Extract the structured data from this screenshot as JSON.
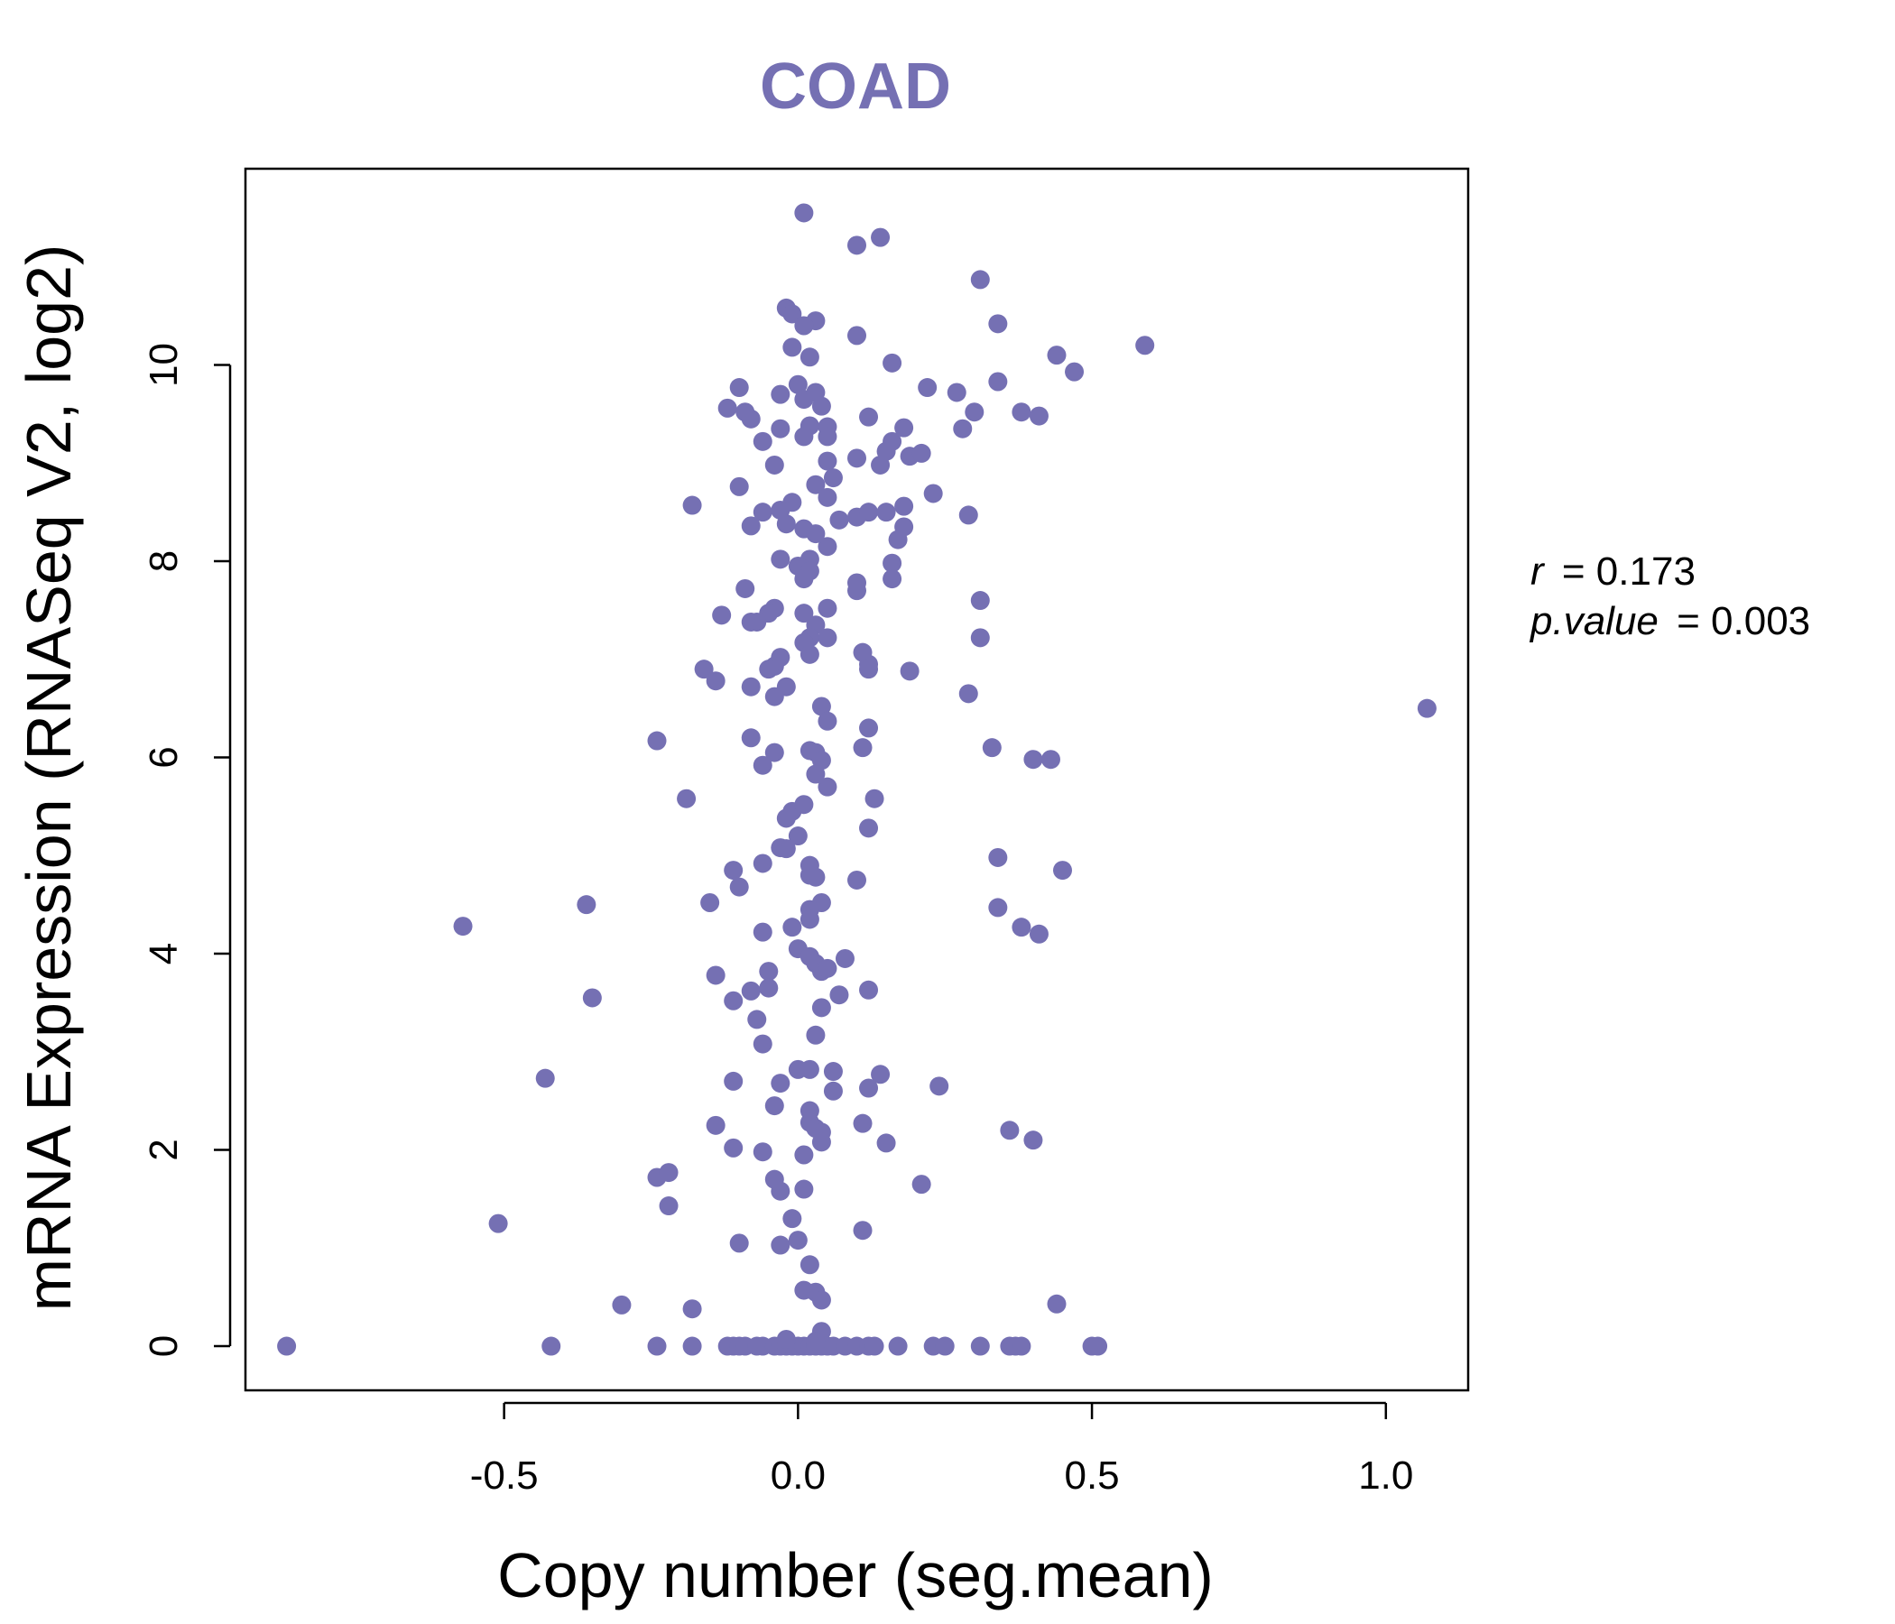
{
  "chart_data": {
    "type": "scatter",
    "title": "COAD",
    "xlabel": "Copy number (seg.mean)",
    "ylabel": "mRNA Expression (RNASeq V2, log2)",
    "xlim": [
      -0.94,
      1.14
    ],
    "ylim": [
      -0.45,
      12.0
    ],
    "x_ticks": [
      -0.5,
      0.0,
      0.5,
      1.0
    ],
    "x_tick_labels": [
      "-0.5",
      "0.0",
      "0.5",
      "1.0"
    ],
    "y_ticks": [
      0,
      2,
      4,
      6,
      8,
      10
    ],
    "y_tick_labels": [
      "0",
      "2",
      "4",
      "6",
      "8",
      "10"
    ],
    "grid": false,
    "point_color": "#7570b3",
    "annotation": {
      "r_symbol": "r",
      "r_value": "= 0.173",
      "p_symbol": "p.value",
      "p_value": "= 0.003"
    },
    "points": [
      [
        0.01,
        11.55
      ],
      [
        0.1,
        11.22
      ],
      [
        0.14,
        11.3
      ],
      [
        0.31,
        10.87
      ],
      [
        -0.02,
        10.58
      ],
      [
        -0.01,
        10.52
      ],
      [
        0.03,
        10.45
      ],
      [
        0.01,
        10.4
      ],
      [
        0.34,
        10.42
      ],
      [
        0.1,
        10.3
      ],
      [
        -0.01,
        10.18
      ],
      [
        0.02,
        10.08
      ],
      [
        0.44,
        10.1
      ],
      [
        0.59,
        10.2
      ],
      [
        0.16,
        10.02
      ],
      [
        0.47,
        9.93
      ],
      [
        -0.1,
        9.77
      ],
      [
        0.0,
        9.8
      ],
      [
        -0.03,
        9.7
      ],
      [
        0.01,
        9.65
      ],
      [
        0.03,
        9.72
      ],
      [
        0.22,
        9.77
      ],
      [
        0.27,
        9.72
      ],
      [
        0.34,
        9.83
      ],
      [
        -0.12,
        9.56
      ],
      [
        -0.09,
        9.52
      ],
      [
        -0.08,
        9.45
      ],
      [
        0.04,
        9.58
      ],
      [
        0.12,
        9.47
      ],
      [
        0.38,
        9.52
      ],
      [
        0.41,
        9.48
      ],
      [
        0.3,
        9.52
      ],
      [
        0.28,
        9.35
      ],
      [
        -0.03,
        9.35
      ],
      [
        0.02,
        9.38
      ],
      [
        0.05,
        9.37
      ],
      [
        0.18,
        9.36
      ],
      [
        0.01,
        9.27
      ],
      [
        0.05,
        9.27
      ],
      [
        0.16,
        9.22
      ],
      [
        -0.06,
        9.22
      ],
      [
        0.15,
        9.12
      ],
      [
        0.1,
        9.05
      ],
      [
        0.19,
        9.07
      ],
      [
        0.21,
        9.1
      ],
      [
        0.05,
        9.02
      ],
      [
        -0.04,
        8.98
      ],
      [
        0.14,
        8.98
      ],
      [
        0.06,
        8.85
      ],
      [
        -0.1,
        8.76
      ],
      [
        0.03,
        8.78
      ],
      [
        0.23,
        8.69
      ],
      [
        0.05,
        8.65
      ],
      [
        -0.18,
        8.57
      ],
      [
        -0.01,
        8.6
      ],
      [
        -0.06,
        8.5
      ],
      [
        -0.03,
        8.52
      ],
      [
        0.1,
        8.45
      ],
      [
        0.12,
        8.5
      ],
      [
        0.15,
        8.5
      ],
      [
        0.18,
        8.56
      ],
      [
        0.29,
        8.47
      ],
      [
        -0.08,
        8.36
      ],
      [
        -0.02,
        8.38
      ],
      [
        0.01,
        8.33
      ],
      [
        0.03,
        8.28
      ],
      [
        0.07,
        8.42
      ],
      [
        0.18,
        8.35
      ],
      [
        0.17,
        8.22
      ],
      [
        0.05,
        8.15
      ],
      [
        0.02,
        8.02
      ],
      [
        -0.03,
        8.02
      ],
      [
        0.0,
        7.95
      ],
      [
        0.02,
        7.9
      ],
      [
        0.16,
        7.98
      ],
      [
        0.01,
        7.82
      ],
      [
        0.16,
        7.82
      ],
      [
        0.1,
        7.78
      ],
      [
        0.1,
        7.7
      ],
      [
        -0.09,
        7.72
      ],
      [
        0.31,
        7.6
      ],
      [
        -0.13,
        7.45
      ],
      [
        -0.04,
        7.52
      ],
      [
        -0.05,
        7.47
      ],
      [
        0.01,
        7.47
      ],
      [
        0.05,
        7.52
      ],
      [
        -0.07,
        7.38
      ],
      [
        -0.08,
        7.38
      ],
      [
        0.03,
        7.35
      ],
      [
        0.02,
        7.22
      ],
      [
        0.05,
        7.22
      ],
      [
        0.01,
        7.17
      ],
      [
        0.31,
        7.22
      ],
      [
        0.11,
        7.07
      ],
      [
        0.02,
        7.05
      ],
      [
        -0.03,
        7.02
      ],
      [
        -0.04,
        6.93
      ],
      [
        -0.05,
        6.9
      ],
      [
        0.12,
        6.95
      ],
      [
        0.12,
        6.9
      ],
      [
        0.19,
        6.88
      ],
      [
        -0.16,
        6.9
      ],
      [
        -0.14,
        6.78
      ],
      [
        -0.08,
        6.72
      ],
      [
        -0.02,
        6.72
      ],
      [
        -0.04,
        6.62
      ],
      [
        0.29,
        6.65
      ],
      [
        0.04,
        6.52
      ],
      [
        0.05,
        6.37
      ],
      [
        1.07,
        6.5
      ],
      [
        -0.24,
        6.17
      ],
      [
        -0.08,
        6.2
      ],
      [
        0.12,
        6.3
      ],
      [
        0.11,
        6.1
      ],
      [
        0.33,
        6.1
      ],
      [
        -0.04,
        6.05
      ],
      [
        0.02,
        6.07
      ],
      [
        0.03,
        6.05
      ],
      [
        0.04,
        5.97
      ],
      [
        -0.06,
        5.92
      ],
      [
        0.03,
        5.83
      ],
      [
        0.4,
        5.98
      ],
      [
        0.43,
        5.98
      ],
      [
        0.05,
        5.7
      ],
      [
        -0.19,
        5.58
      ],
      [
        0.13,
        5.58
      ],
      [
        -0.01,
        5.45
      ],
      [
        0.01,
        5.52
      ],
      [
        -0.02,
        5.38
      ],
      [
        0.12,
        5.28
      ],
      [
        0.0,
        5.2
      ],
      [
        -0.03,
        5.08
      ],
      [
        -0.02,
        5.07
      ],
      [
        0.34,
        4.98
      ],
      [
        -0.06,
        4.92
      ],
      [
        -0.11,
        4.85
      ],
      [
        0.02,
        4.9
      ],
      [
        0.02,
        4.8
      ],
      [
        0.03,
        4.78
      ],
      [
        0.1,
        4.75
      ],
      [
        0.45,
        4.85
      ],
      [
        -0.1,
        4.68
      ],
      [
        -0.15,
        4.52
      ],
      [
        0.04,
        4.52
      ],
      [
        0.02,
        4.45
      ],
      [
        0.34,
        4.47
      ],
      [
        -0.36,
        4.5
      ],
      [
        -0.57,
        4.28
      ],
      [
        -0.06,
        4.22
      ],
      [
        0.02,
        4.35
      ],
      [
        -0.01,
        4.27
      ],
      [
        0.38,
        4.27
      ],
      [
        0.41,
        4.2
      ],
      [
        0.0,
        4.05
      ],
      [
        0.02,
        3.97
      ],
      [
        0.03,
        3.9
      ],
      [
        0.08,
        3.95
      ],
      [
        -0.05,
        3.82
      ],
      [
        -0.14,
        3.78
      ],
      [
        0.04,
        3.82
      ],
      [
        0.05,
        3.85
      ],
      [
        0.12,
        3.63
      ],
      [
        -0.35,
        3.55
      ],
      [
        -0.08,
        3.62
      ],
      [
        -0.05,
        3.65
      ],
      [
        0.07,
        3.58
      ],
      [
        -0.11,
        3.52
      ],
      [
        0.04,
        3.45
      ],
      [
        -0.07,
        3.33
      ],
      [
        0.03,
        3.17
      ],
      [
        -0.06,
        3.08
      ],
      [
        -0.43,
        2.73
      ],
      [
        -0.11,
        2.7
      ],
      [
        -0.03,
        2.68
      ],
      [
        0.0,
        2.82
      ],
      [
        0.02,
        2.82
      ],
      [
        0.06,
        2.8
      ],
      [
        0.14,
        2.77
      ],
      [
        0.06,
        2.6
      ],
      [
        0.12,
        2.63
      ],
      [
        0.24,
        2.65
      ],
      [
        -0.04,
        2.45
      ],
      [
        0.02,
        2.4
      ],
      [
        0.02,
        2.28
      ],
      [
        0.03,
        2.22
      ],
      [
        0.04,
        2.18
      ],
      [
        0.11,
        2.27
      ],
      [
        0.04,
        2.08
      ],
      [
        0.15,
        2.07
      ],
      [
        -0.14,
        2.25
      ],
      [
        -0.11,
        2.02
      ],
      [
        -0.06,
        1.98
      ],
      [
        0.01,
        1.95
      ],
      [
        0.36,
        2.2
      ],
      [
        0.4,
        2.1
      ],
      [
        -0.24,
        1.72
      ],
      [
        -0.22,
        1.77
      ],
      [
        -0.04,
        1.7
      ],
      [
        -0.03,
        1.58
      ],
      [
        0.01,
        1.6
      ],
      [
        0.21,
        1.65
      ],
      [
        -0.22,
        1.43
      ],
      [
        -0.01,
        1.3
      ],
      [
        -0.51,
        1.25
      ],
      [
        0.11,
        1.18
      ],
      [
        -0.1,
        1.05
      ],
      [
        0.0,
        1.08
      ],
      [
        -0.03,
        1.03
      ],
      [
        0.02,
        0.83
      ],
      [
        0.01,
        0.57
      ],
      [
        0.03,
        0.55
      ],
      [
        0.04,
        0.47
      ],
      [
        -0.3,
        0.42
      ],
      [
        -0.18,
        0.38
      ],
      [
        0.44,
        0.43
      ],
      [
        0.04,
        0.15
      ],
      [
        -0.87,
        0.0
      ],
      [
        -0.42,
        0.0
      ],
      [
        -0.24,
        0.0
      ],
      [
        -0.18,
        0.0
      ],
      [
        -0.12,
        0.0
      ],
      [
        -0.11,
        0.0
      ],
      [
        -0.1,
        0.0
      ],
      [
        -0.09,
        0.0
      ],
      [
        -0.07,
        0.0
      ],
      [
        -0.06,
        0.0
      ],
      [
        -0.04,
        0.0
      ],
      [
        -0.03,
        0.0
      ],
      [
        -0.02,
        0.0
      ],
      [
        -0.01,
        0.0
      ],
      [
        0.0,
        0.0
      ],
      [
        0.01,
        0.0
      ],
      [
        0.02,
        0.0
      ],
      [
        0.03,
        0.0
      ],
      [
        0.04,
        0.0
      ],
      [
        0.05,
        0.0
      ],
      [
        0.06,
        0.0
      ],
      [
        0.08,
        0.0
      ],
      [
        0.1,
        0.0
      ],
      [
        0.12,
        0.0
      ],
      [
        0.13,
        0.0
      ],
      [
        0.17,
        0.0
      ],
      [
        0.23,
        0.0
      ],
      [
        0.25,
        0.0
      ],
      [
        0.31,
        0.0
      ],
      [
        0.36,
        0.0
      ],
      [
        0.37,
        0.0
      ],
      [
        0.38,
        0.0
      ],
      [
        0.5,
        0.0
      ],
      [
        0.51,
        0.0
      ],
      [
        -0.02,
        0.07
      ],
      [
        0.03,
        0.05
      ]
    ]
  }
}
